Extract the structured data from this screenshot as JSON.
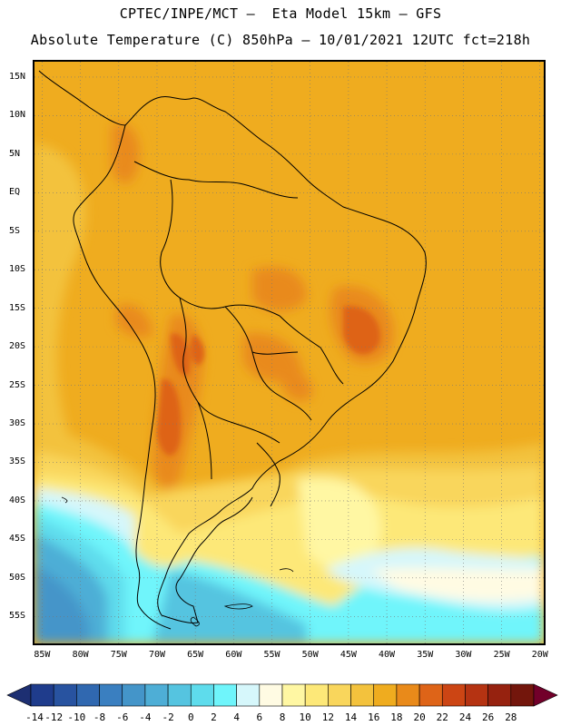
{
  "header": {
    "line1": "CPTEC/INPE/MCT –  Eta Model 15km – GFS",
    "line2": "Absolute Temperature (C) 850hPa – 10/01/2021 12UTC fct=218h"
  },
  "map": {
    "lat_labels": [
      {
        "value": 15,
        "text": "15N"
      },
      {
        "value": 10,
        "text": "10N"
      },
      {
        "value": 5,
        "text": "5N"
      },
      {
        "value": 0,
        "text": "EQ"
      },
      {
        "value": -5,
        "text": "5S"
      },
      {
        "value": -10,
        "text": "10S"
      },
      {
        "value": -15,
        "text": "15S"
      },
      {
        "value": -20,
        "text": "20S"
      },
      {
        "value": -25,
        "text": "25S"
      },
      {
        "value": -30,
        "text": "30S"
      },
      {
        "value": -35,
        "text": "35S"
      },
      {
        "value": -40,
        "text": "40S"
      },
      {
        "value": -45,
        "text": "45S"
      },
      {
        "value": -50,
        "text": "50S"
      },
      {
        "value": -55,
        "text": "55S"
      }
    ],
    "lon_labels": [
      {
        "value": -85,
        "text": "85W"
      },
      {
        "value": -80,
        "text": "80W"
      },
      {
        "value": -75,
        "text": "75W"
      },
      {
        "value": -70,
        "text": "70W"
      },
      {
        "value": -65,
        "text": "65W"
      },
      {
        "value": -60,
        "text": "60W"
      },
      {
        "value": -55,
        "text": "55W"
      },
      {
        "value": -50,
        "text": "50W"
      },
      {
        "value": -45,
        "text": "45W"
      },
      {
        "value": -40,
        "text": "40W"
      },
      {
        "value": -35,
        "text": "35W"
      },
      {
        "value": -30,
        "text": "30W"
      },
      {
        "value": -25,
        "text": "25W"
      },
      {
        "value": -20,
        "text": "20W"
      }
    ],
    "lon_range": [
      -86,
      -19.5
    ],
    "lat_range": [
      -58.5,
      17
    ],
    "grid": "dotted"
  },
  "colorbar": {
    "labels": [
      "-14",
      "-12",
      "-10",
      "-8",
      "-6",
      "-4",
      "-2",
      "0",
      "2",
      "4",
      "6",
      "8",
      "10",
      "12",
      "14",
      "16",
      "18",
      "20",
      "22",
      "24",
      "26",
      "28"
    ],
    "colors": [
      "#1f3c8c",
      "#2853a0",
      "#3068b0",
      "#3a7fc0",
      "#4495c9",
      "#4eaed6",
      "#55c4e0",
      "#5edcec",
      "#6ff5fb",
      "#d6f7fb",
      "#fffbe3",
      "#fff7a3",
      "#fde878",
      "#f9d65c",
      "#f3c23d",
      "#efac1f",
      "#e98a1a",
      "#de6418",
      "#cc4514",
      "#b53312",
      "#96220f",
      "#73160c"
    ],
    "low_arrow_color": "#1d2f72",
    "high_arrow_color": "#72002a"
  }
}
